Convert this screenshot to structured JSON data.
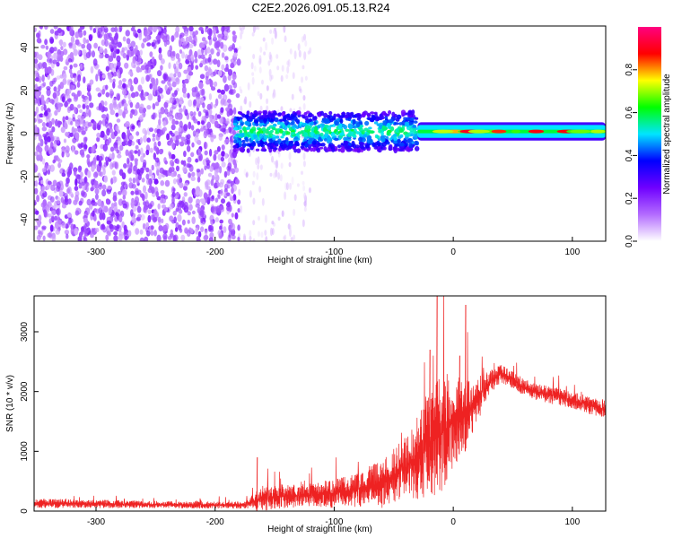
{
  "title": "C2E2.2026.091.05.13.R24",
  "chart_data": [
    {
      "type": "heatmap",
      "xlabel": "Height of straight line (km)",
      "ylabel": "Frequency (Hz)",
      "xlim": [
        -352,
        128
      ],
      "ylim": [
        -50,
        50
      ],
      "xticks": [
        -300,
        -200,
        -100,
        0,
        100
      ],
      "yticks": [
        -40,
        -20,
        0,
        20,
        40
      ],
      "colorbar": {
        "label": "Normalized spectral amplitude",
        "range": [
          0,
          1
        ],
        "ticks": [
          0.0,
          0.2,
          0.4,
          0.6,
          0.8
        ],
        "colormap": [
          "#ffffff",
          "#b36bff",
          "#6f00ff",
          "#0000ff",
          "#00e5ff",
          "#00ff00",
          "#ffff00",
          "#ff0000",
          "#ff0080"
        ]
      },
      "regions": [
        {
          "x": [
            -352,
            -180
          ],
          "freq": [
            -50,
            50
          ],
          "amplitude": 0.15,
          "pattern": "dense noise"
        },
        {
          "x": [
            -180,
            -120
          ],
          "freq": [
            -50,
            50
          ],
          "amplitude": 0.05,
          "pattern": "sparse noise"
        },
        {
          "x": [
            -185,
            -30
          ],
          "freq": [
            -8,
            10
          ],
          "amplitude": 0.35,
          "pattern": "signal band"
        },
        {
          "x": [
            -30,
            128
          ],
          "freq": [
            -2,
            4
          ],
          "amplitude": 0.9,
          "pattern": "narrow tone near 1 Hz"
        }
      ]
    },
    {
      "type": "line",
      "xlabel": "Height of straight line (km)",
      "ylabel": "SNR (10 * v/v)",
      "xlim": [
        -352,
        128
      ],
      "ylim": [
        0,
        3600
      ],
      "xticks": [
        -300,
        -200,
        -100,
        0,
        100
      ],
      "yticks": [
        0,
        1000,
        2000,
        3000
      ],
      "color": "#ee2222",
      "envelope": {
        "x": [
          -352,
          -300,
          -250,
          -200,
          -175,
          -160,
          -140,
          -120,
          -100,
          -80,
          -60,
          -45,
          -30,
          -20,
          -10,
          0,
          10,
          20,
          30,
          40,
          50,
          60,
          80,
          100,
          128
        ],
        "baseline": [
          130,
          120,
          110,
          100,
          100,
          220,
          250,
          260,
          300,
          360,
          450,
          650,
          900,
          1100,
          1300,
          1500,
          1600,
          1850,
          2150,
          2300,
          2200,
          2050,
          1950,
          1850,
          1700
        ],
        "amplitude": [
          80,
          70,
          60,
          60,
          60,
          220,
          200,
          200,
          250,
          300,
          400,
          500,
          700,
          900,
          1000,
          800,
          600,
          400,
          200,
          150,
          150,
          150,
          150,
          150,
          150
        ]
      },
      "spikes": [
        {
          "x": -14,
          "value": 3600
        },
        {
          "x": 10,
          "value": 3450
        },
        {
          "x": -20,
          "value": 2700
        },
        {
          "x": 5,
          "value": 2600
        },
        {
          "x": -165,
          "value": 900
        }
      ]
    }
  ]
}
